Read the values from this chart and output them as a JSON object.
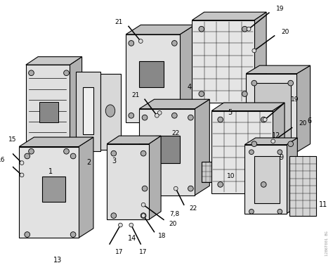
{
  "bg_color": "#ffffff",
  "line_color": "#000000",
  "gray_color": "#888888",
  "light_gray": "#cccccc",
  "mid_gray": "#aaaaaa",
  "dark_gray": "#555555",
  "watermark_text": "1286T001 BG",
  "title": "",
  "figsize": [
    4.74,
    3.74
  ],
  "dpi": 100
}
